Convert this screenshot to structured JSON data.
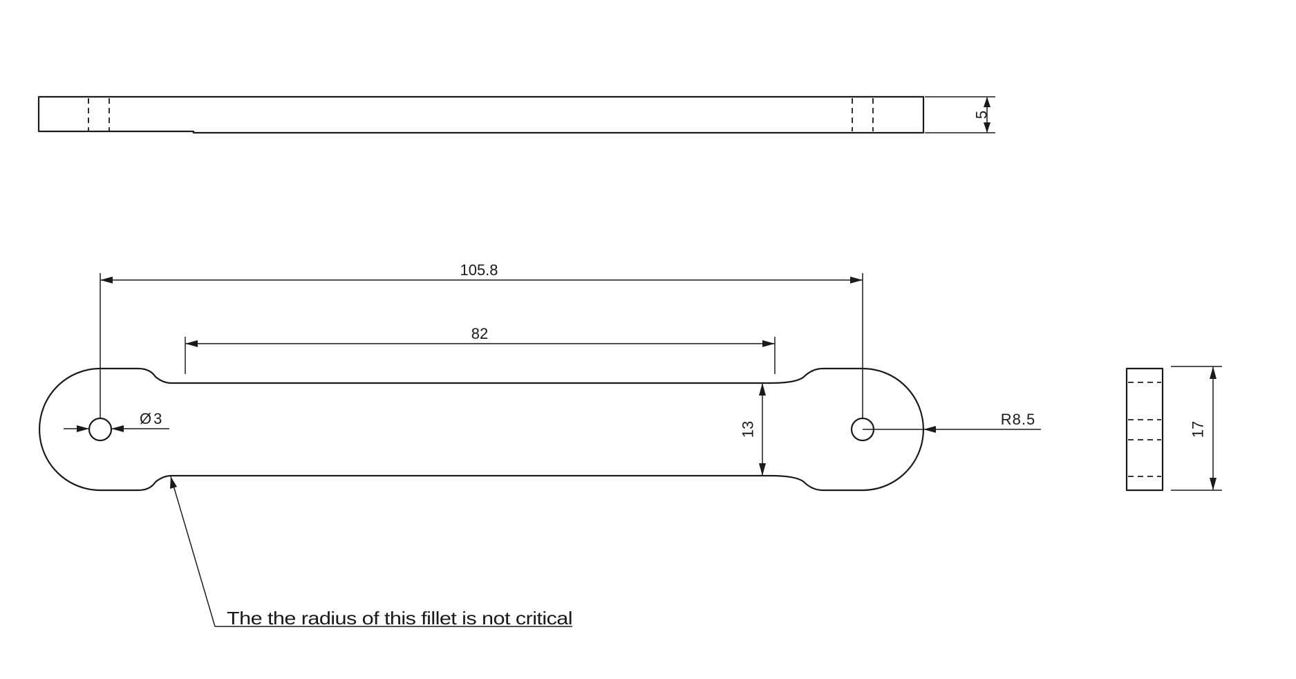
{
  "dimensions": {
    "thickness": "5",
    "hole_spacing": "105.8",
    "neck_length": "82",
    "neck_width": "13",
    "hole_diameter": "Ø3",
    "end_radius": "R8.5",
    "end_width": "17"
  },
  "notes": {
    "fillet_note": "The the radius of this fillet is not critical"
  }
}
